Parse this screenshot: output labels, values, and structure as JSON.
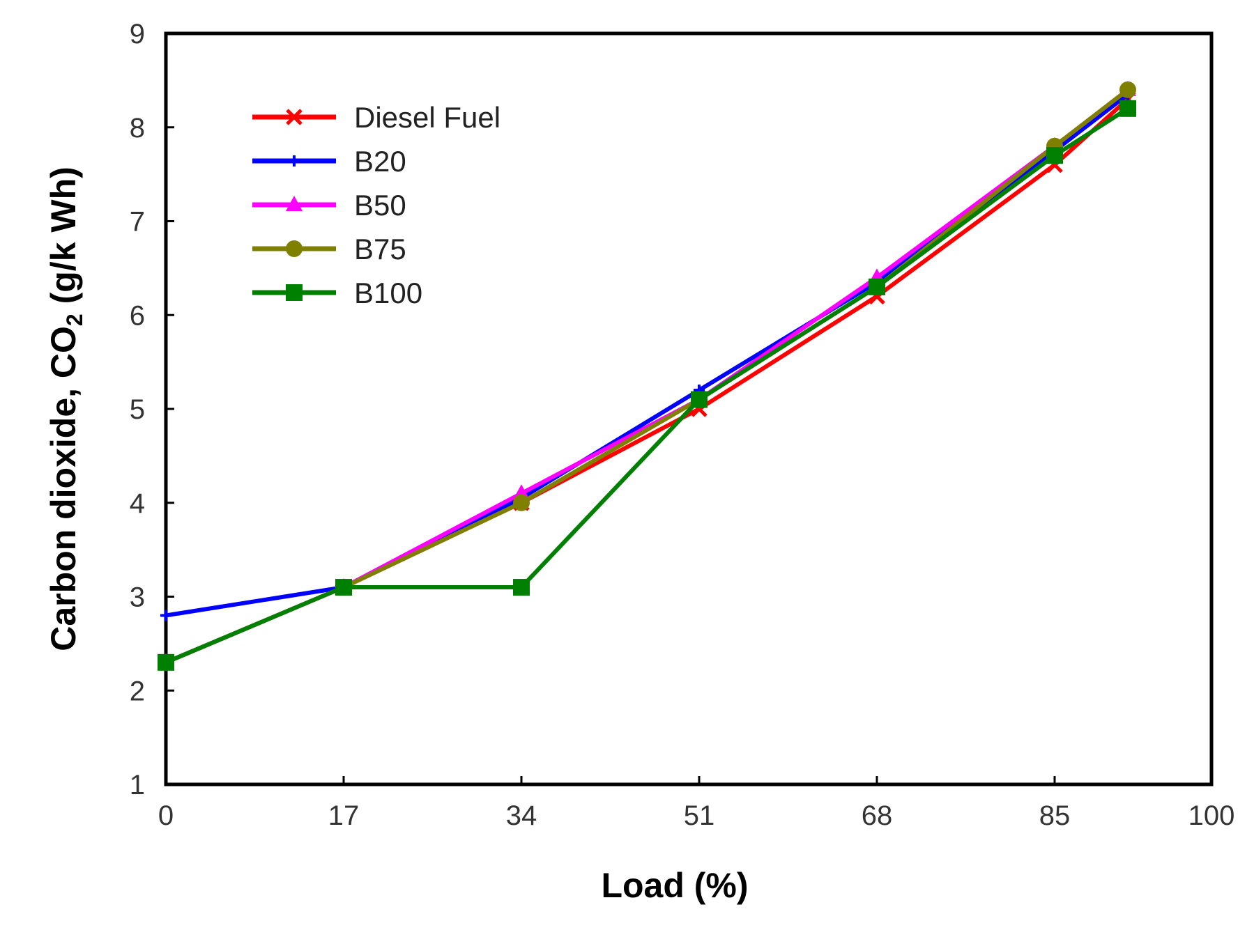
{
  "chart_data": {
    "type": "line",
    "xlabel": "Load (%)",
    "ylabel_main": "Carbon dioxide, CO",
    "ylabel_sub": "2",
    "ylabel_unit": " (g/k Wh)",
    "xlim": [
      0,
      100
    ],
    "ylim": [
      1,
      9
    ],
    "xticks": [
      0,
      17,
      34,
      51,
      68,
      85,
      100
    ],
    "xtick_labels": [
      "0",
      "17",
      "34",
      "51",
      "68",
      "85",
      "100"
    ],
    "yticks": [
      1,
      2,
      3,
      4,
      5,
      6,
      7,
      8,
      9
    ],
    "ytick_labels": [
      "1",
      "2",
      "3",
      "4",
      "5",
      "6",
      "7",
      "8",
      "9"
    ],
    "legend_position": "top-left",
    "series": [
      {
        "name": "Diesel Fuel",
        "color": "#ff0000",
        "marker": "x",
        "x": [
          0,
          17,
          34,
          51,
          68,
          85,
          92
        ],
        "y": [
          2.3,
          3.1,
          4.0,
          5.0,
          6.2,
          7.6,
          8.3
        ]
      },
      {
        "name": "B20",
        "color": "#0000ff",
        "marker": "plus",
        "x": [
          0,
          17,
          34,
          51,
          68,
          85,
          92
        ],
        "y": [
          2.8,
          3.1,
          4.05,
          5.2,
          6.35,
          7.75,
          8.35
        ]
      },
      {
        "name": "B50",
        "color": "#ff00ff",
        "marker": "triangle",
        "x": [
          0,
          17,
          34,
          51,
          68,
          85,
          92
        ],
        "y": [
          2.3,
          3.1,
          4.1,
          5.1,
          6.4,
          7.8,
          8.4
        ]
      },
      {
        "name": "B75",
        "color": "#808000",
        "marker": "circle",
        "x": [
          0,
          17,
          34,
          51,
          68,
          85,
          92
        ],
        "y": [
          2.3,
          3.1,
          4.0,
          5.1,
          6.3,
          7.8,
          8.4
        ]
      },
      {
        "name": "B100",
        "color": "#008000",
        "marker": "square",
        "x": [
          0,
          17,
          34,
          51,
          68,
          85,
          92
        ],
        "y": [
          2.3,
          3.1,
          3.1,
          5.1,
          6.3,
          7.7,
          8.2
        ]
      }
    ]
  }
}
